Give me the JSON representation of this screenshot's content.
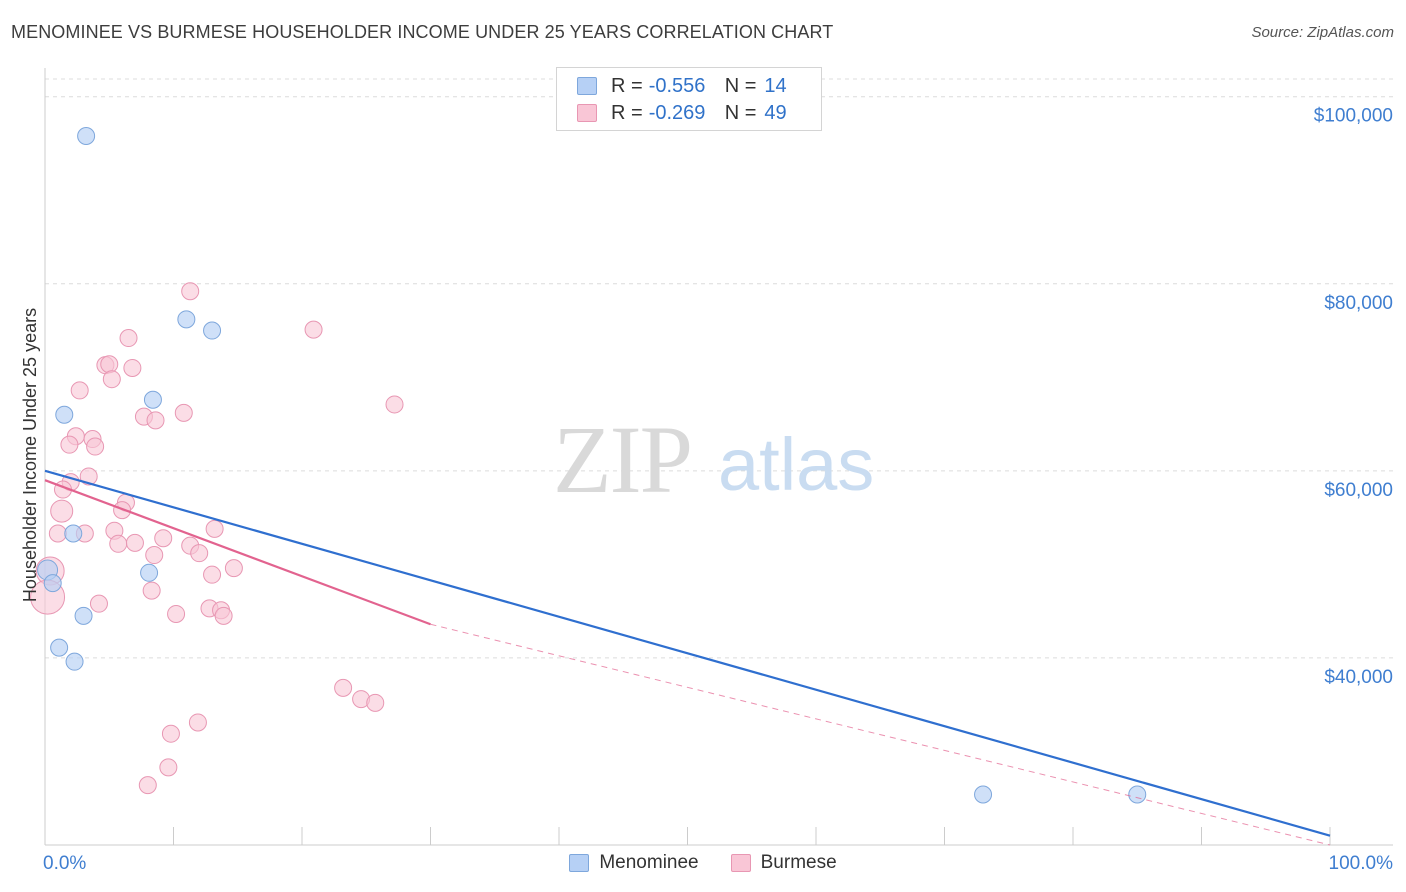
{
  "header": {
    "title": "MENOMINEE VS BURMESE HOUSEHOLDER INCOME UNDER 25 YEARS CORRELATION CHART",
    "source": "Source: ZipAtlas.com"
  },
  "watermark": {
    "zip": "ZIP",
    "atlas": "atlas"
  },
  "legend": {
    "r_label": "R =",
    "n_label": "N =",
    "rows": [
      {
        "name": "Menominee",
        "r": "-0.556",
        "n": "14"
      },
      {
        "name": "Burmese",
        "r": "-0.269",
        "n": "49"
      }
    ]
  },
  "colors": {
    "menominee_fill": "#b6d0f5",
    "menominee_stroke": "#7ea7dc",
    "menominee_line": "#2f6fcf",
    "burmese_fill": "#f9c6d6",
    "burmese_stroke": "#e897b3",
    "burmese_line": "#e2638f",
    "tick_label": "#3f7ed0"
  },
  "chart_data": {
    "type": "scatter",
    "title": "MENOMINEE VS BURMESE HOUSEHOLDER INCOME UNDER 25 YEARS CORRELATION CHART",
    "xlabel": "",
    "ylabel": "Householder Income Under 25 years",
    "xlim": [
      0,
      100
    ],
    "ylim": [
      20000,
      102000
    ],
    "x_tick_labels": [
      "0.0%",
      "100.0%"
    ],
    "y_ticks": [
      40000,
      60000,
      80000,
      100000
    ],
    "y_tick_labels": [
      "$40,000",
      "$60,000",
      "$80,000",
      "$100,000"
    ],
    "grid": true,
    "legend_position": "top-center",
    "series": [
      {
        "name": "Menominee",
        "points": [
          [
            3.2,
            95800
          ],
          [
            11.0,
            76200
          ],
          [
            13.0,
            75000
          ],
          [
            8.4,
            67600
          ],
          [
            1.5,
            66000
          ],
          [
            2.2,
            53300
          ],
          [
            8.1,
            49100
          ],
          [
            0.2,
            49400
          ],
          [
            0.6,
            48000
          ],
          [
            3.0,
            44500
          ],
          [
            1.1,
            41100
          ],
          [
            2.3,
            39600
          ],
          [
            73.0,
            25400
          ],
          [
            85.0,
            25400
          ]
        ],
        "trend": {
          "x": [
            0,
            100
          ],
          "y": [
            60000,
            21000
          ],
          "style": "solid"
        }
      },
      {
        "name": "Burmese",
        "points": [
          [
            11.3,
            79200
          ],
          [
            20.9,
            75100
          ],
          [
            6.5,
            74200
          ],
          [
            4.7,
            71300
          ],
          [
            5.0,
            71400
          ],
          [
            6.8,
            71000
          ],
          [
            5.2,
            69800
          ],
          [
            2.7,
            68600
          ],
          [
            27.2,
            67100
          ],
          [
            10.8,
            66200
          ],
          [
            7.7,
            65800
          ],
          [
            8.6,
            65400
          ],
          [
            2.4,
            63700
          ],
          [
            3.7,
            63400
          ],
          [
            1.9,
            62800
          ],
          [
            3.9,
            62600
          ],
          [
            3.4,
            59400
          ],
          [
            2.0,
            58800
          ],
          [
            1.4,
            58000
          ],
          [
            1.3,
            55700
          ],
          [
            6.3,
            56600
          ],
          [
            6.0,
            55800
          ],
          [
            1.0,
            53300
          ],
          [
            3.1,
            53300
          ],
          [
            5.4,
            53600
          ],
          [
            13.2,
            53800
          ],
          [
            9.2,
            52800
          ],
          [
            5.7,
            52200
          ],
          [
            7.0,
            52300
          ],
          [
            11.3,
            52000
          ],
          [
            8.5,
            51000
          ],
          [
            12.0,
            51200
          ],
          [
            0.4,
            49300
          ],
          [
            14.7,
            49600
          ],
          [
            13.0,
            48900
          ],
          [
            0.2,
            46500
          ],
          [
            8.3,
            47200
          ],
          [
            4.2,
            45800
          ],
          [
            10.2,
            44700
          ],
          [
            12.8,
            45300
          ],
          [
            13.7,
            45100
          ],
          [
            13.9,
            44500
          ],
          [
            23.2,
            36800
          ],
          [
            24.6,
            35600
          ],
          [
            25.7,
            35200
          ],
          [
            11.9,
            33100
          ],
          [
            9.8,
            31900
          ],
          [
            9.6,
            28300
          ],
          [
            8.0,
            26400
          ]
        ],
        "trend_solid": {
          "x": [
            0,
            30
          ],
          "y": [
            59000,
            43600
          ]
        },
        "trend_dashed": {
          "x": [
            30,
            100
          ],
          "y": [
            43600,
            20000
          ]
        }
      }
    ]
  }
}
